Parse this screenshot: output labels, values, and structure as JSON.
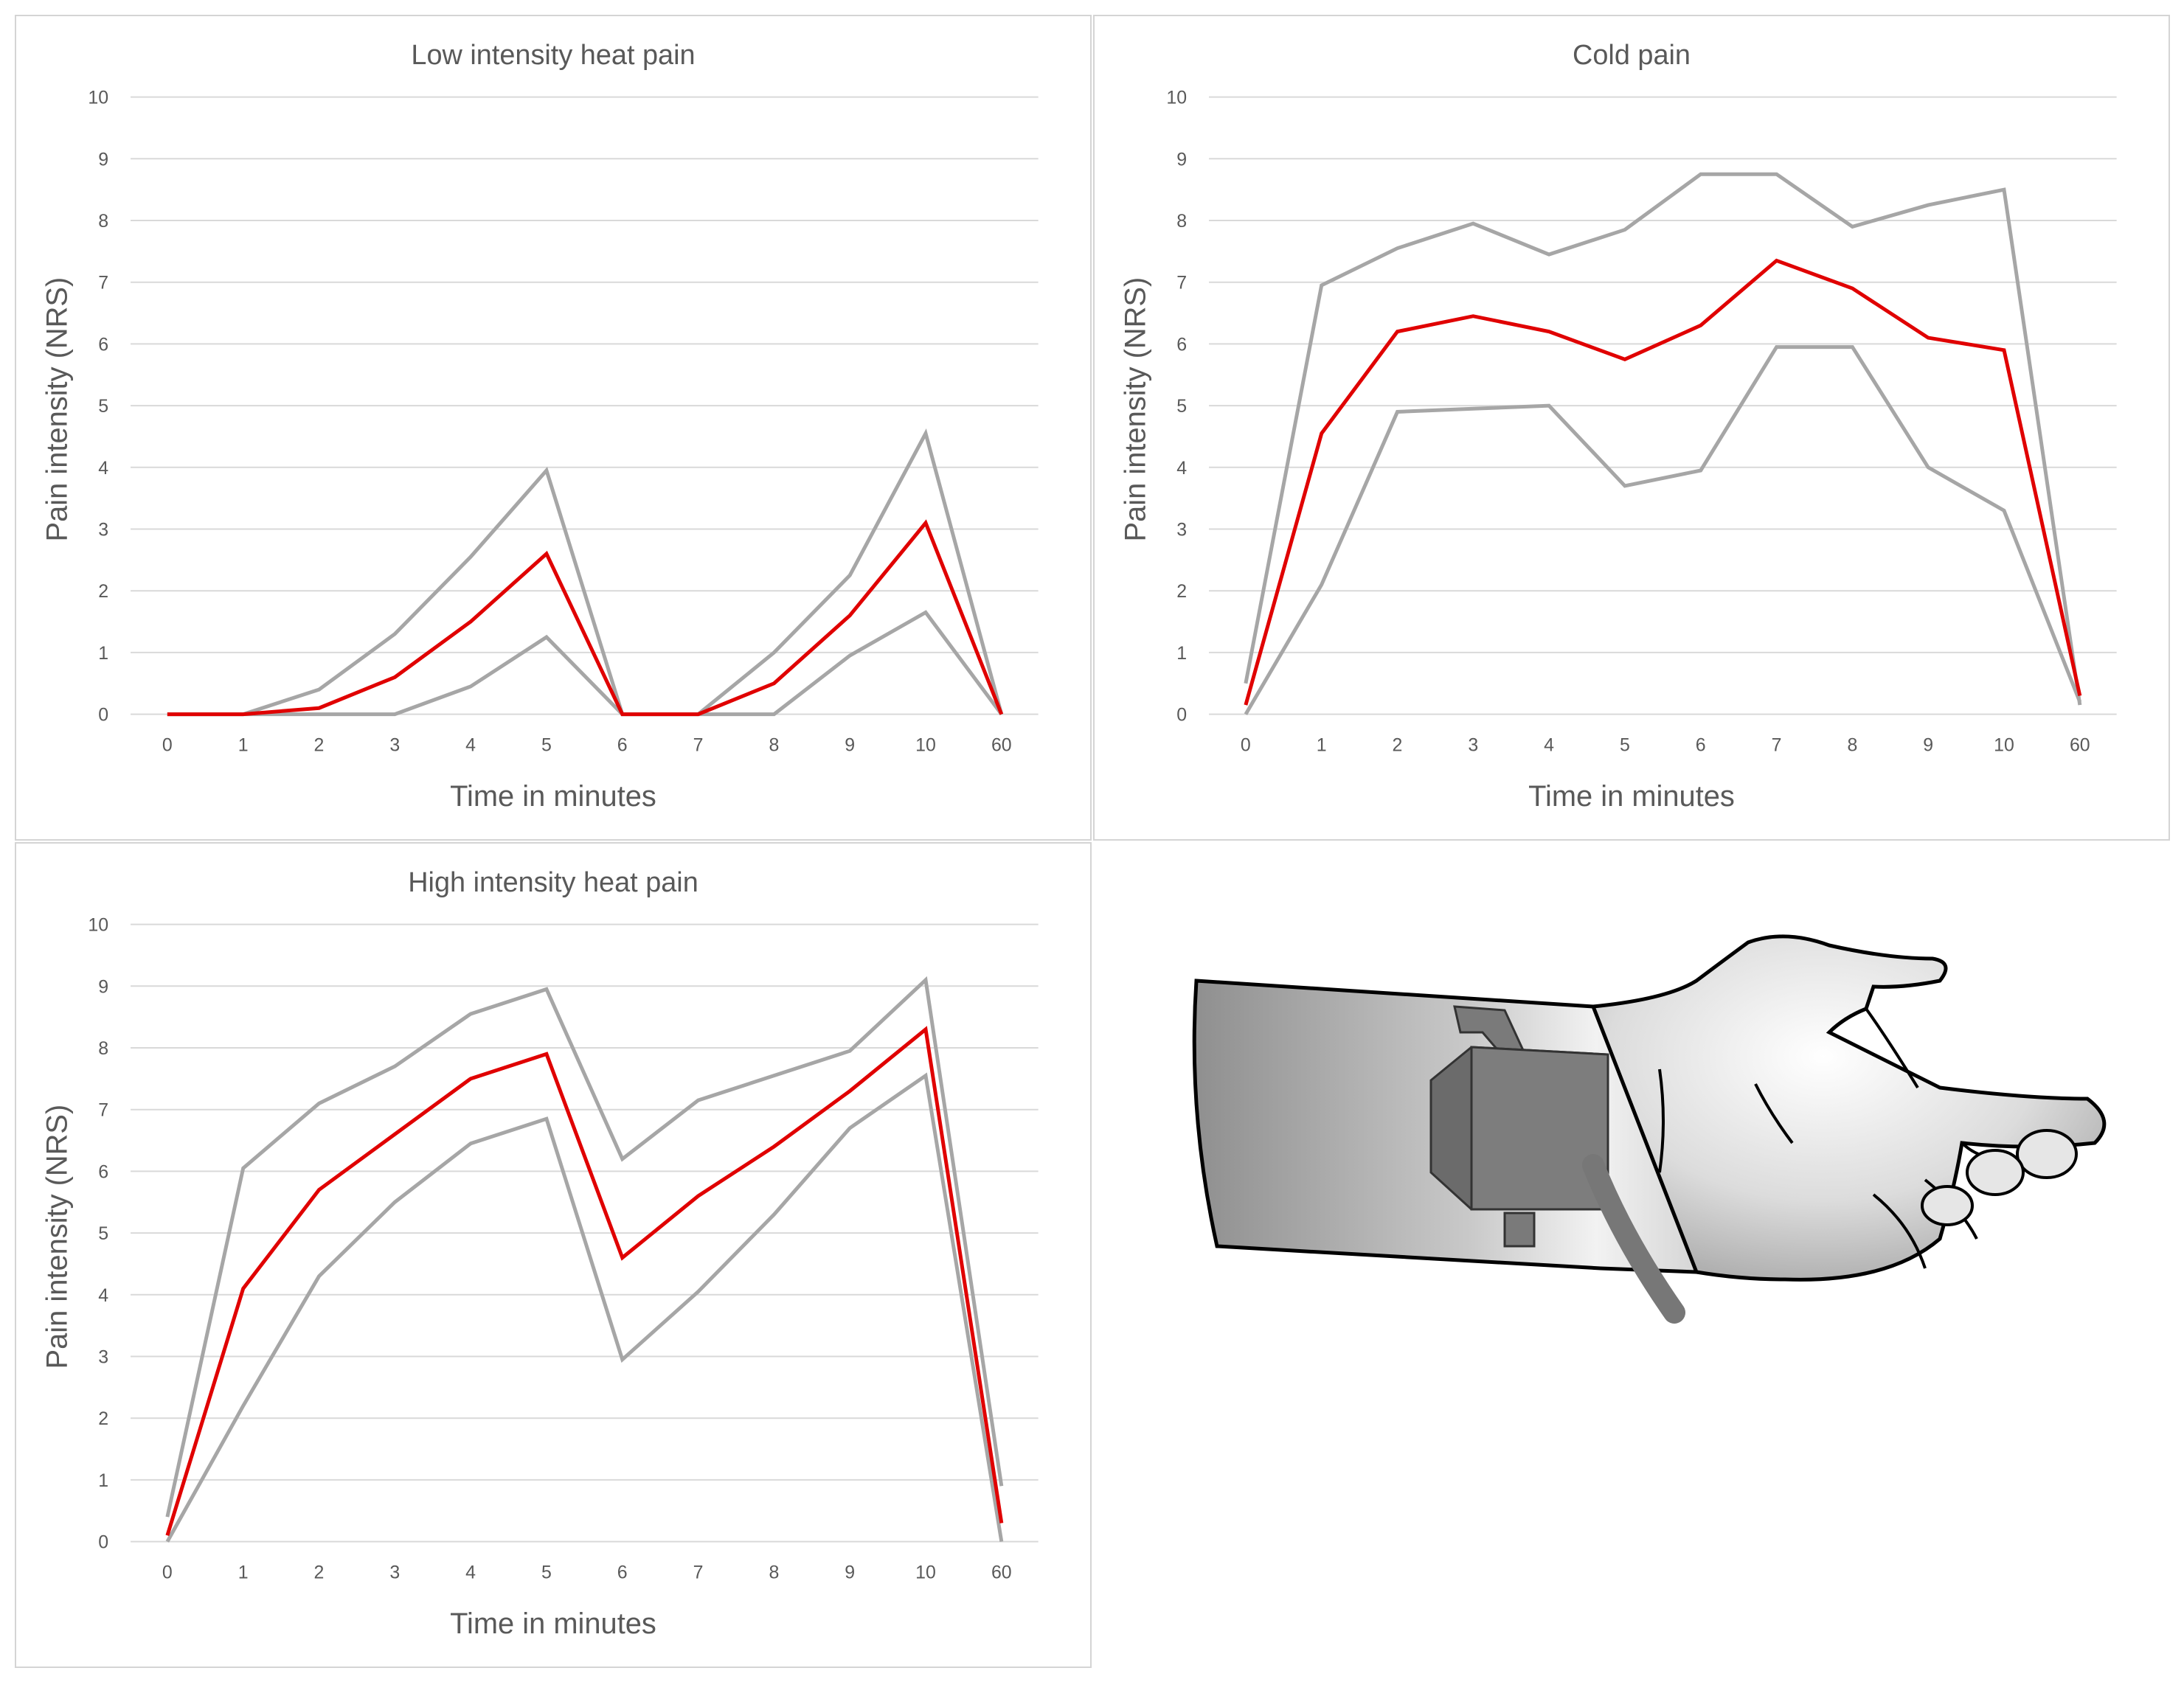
{
  "colors": {
    "mean": "#e00000",
    "bound": "#a6a6a6",
    "grid": "#d9d9d9",
    "text": "#595959"
  },
  "chart_data": [
    {
      "type": "line",
      "title": "Low intensity heat pain",
      "xlabel": "Time in minutes",
      "ylabel": "Pain intensity (NRS)",
      "categories": [
        "0",
        "1",
        "2",
        "3",
        "4",
        "5",
        "6",
        "7",
        "8",
        "9",
        "10",
        "60"
      ],
      "yticks": [
        "0",
        "1",
        "2",
        "3",
        "4",
        "5",
        "6",
        "7",
        "8",
        "9",
        "10"
      ],
      "ylim": [
        0,
        10
      ],
      "grid": true,
      "series": [
        {
          "color": "#a6a6a6",
          "values": [
            0,
            0,
            0.4,
            1.3,
            2.55,
            3.95,
            0,
            0,
            1.0,
            2.25,
            4.55,
            0
          ]
        },
        {
          "color": "#e00000",
          "values": [
            0,
            0,
            0.1,
            0.6,
            1.5,
            2.6,
            0,
            0,
            0.5,
            1.6,
            3.1,
            0
          ]
        },
        {
          "color": "#a6a6a6",
          "values": [
            0,
            0,
            0,
            0,
            0.45,
            1.25,
            0,
            0,
            0,
            0.95,
            1.65,
            0
          ]
        }
      ]
    },
    {
      "type": "line",
      "title": "Cold pain",
      "xlabel": "Time in minutes",
      "ylabel": "Pain intensity (NRS)",
      "categories": [
        "0",
        "1",
        "2",
        "3",
        "4",
        "5",
        "6",
        "7",
        "8",
        "9",
        "10",
        "60"
      ],
      "yticks": [
        "0",
        "1",
        "2",
        "3",
        "4",
        "5",
        "6",
        "7",
        "8",
        "9",
        "10"
      ],
      "ylim": [
        0,
        10
      ],
      "grid": true,
      "series": [
        {
          "color": "#a6a6a6",
          "values": [
            0.5,
            6.95,
            7.55,
            7.95,
            7.45,
            7.85,
            8.75,
            8.75,
            7.9,
            8.25,
            8.5,
            0.15
          ]
        },
        {
          "color": "#e00000",
          "values": [
            0.15,
            4.55,
            6.2,
            6.45,
            6.2,
            5.75,
            6.3,
            7.35,
            6.9,
            6.1,
            5.9,
            0.3
          ]
        },
        {
          "color": "#a6a6a6",
          "values": [
            0,
            2.1,
            4.9,
            4.95,
            5.0,
            3.7,
            3.95,
            5.95,
            5.95,
            4.0,
            3.3,
            0.2
          ]
        }
      ]
    },
    {
      "type": "line",
      "title": "High intensity heat pain",
      "xlabel": "Time in minutes",
      "ylabel": "Pain intensity (NRS)",
      "categories": [
        "0",
        "1",
        "2",
        "3",
        "4",
        "5",
        "6",
        "7",
        "8",
        "9",
        "10",
        "60"
      ],
      "yticks": [
        "0",
        "1",
        "2",
        "3",
        "4",
        "5",
        "6",
        "7",
        "8",
        "9",
        "10"
      ],
      "ylim": [
        0,
        10
      ],
      "grid": true,
      "series": [
        {
          "color": "#a6a6a6",
          "values": [
            0.4,
            6.05,
            7.1,
            7.7,
            8.55,
            8.95,
            6.2,
            7.15,
            7.55,
            7.95,
            9.1,
            0.9
          ]
        },
        {
          "color": "#e00000",
          "values": [
            0.1,
            4.1,
            5.7,
            6.6,
            7.5,
            7.9,
            4.6,
            5.6,
            6.4,
            7.3,
            8.3,
            0.3
          ]
        },
        {
          "color": "#a6a6a6",
          "values": [
            0,
            2.2,
            4.3,
            5.5,
            6.45,
            6.85,
            2.95,
            4.05,
            5.3,
            6.7,
            7.55,
            0
          ]
        }
      ]
    }
  ]
}
